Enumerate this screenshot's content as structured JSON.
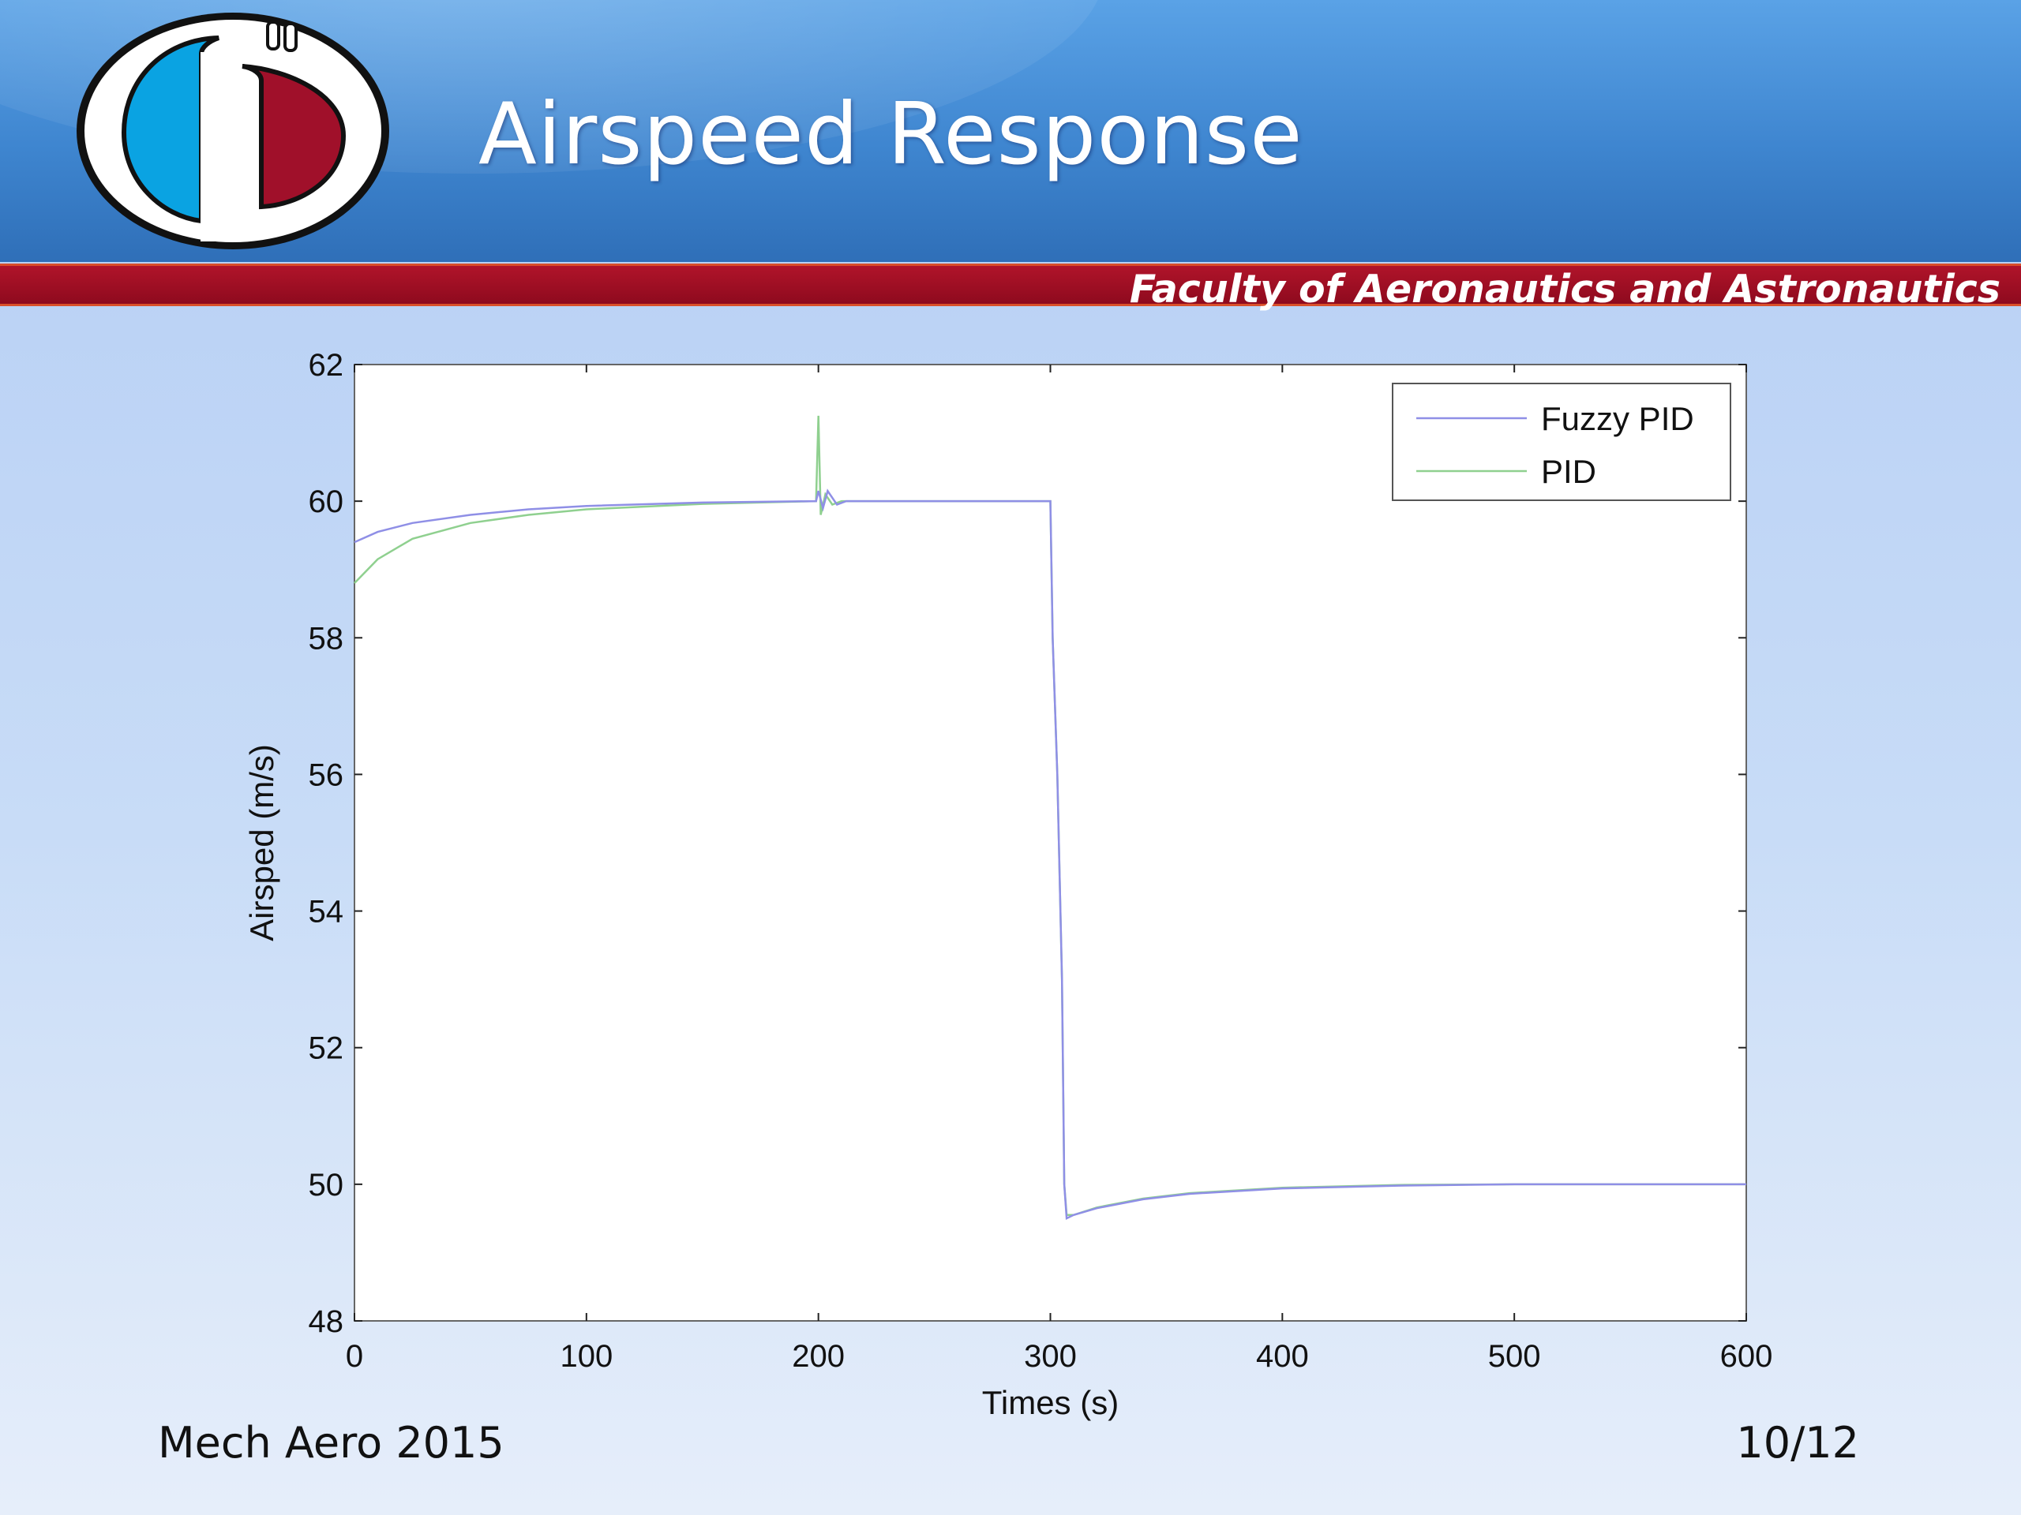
{
  "slide": {
    "title": "Airspeed Response",
    "faculty_banner": "Faculty of Aeronautics and Astronautics",
    "footer_left": "Mech Aero 2015",
    "page_number": "10/12",
    "colors": {
      "header_blue": "#3f86d0",
      "banner_red": "#a0102a",
      "logo_blue": "#0aa3e2",
      "logo_red": "#a0102a"
    }
  },
  "chart_data": {
    "type": "line",
    "xlabel": "Times (s)",
    "ylabel": "Airsped (m/s)",
    "xlim": [
      0,
      600
    ],
    "ylim": [
      48,
      62
    ],
    "xticks": [
      0,
      100,
      200,
      300,
      400,
      500,
      600
    ],
    "yticks": [
      48,
      50,
      52,
      54,
      56,
      58,
      60,
      62
    ],
    "grid": false,
    "legend_position": "top-right",
    "series": [
      {
        "name": "Fuzzy PID",
        "color": "#8f8fe6",
        "points": [
          [
            0,
            59.4
          ],
          [
            10,
            59.55
          ],
          [
            25,
            59.68
          ],
          [
            50,
            59.8
          ],
          [
            75,
            59.88
          ],
          [
            100,
            59.93
          ],
          [
            150,
            59.98
          ],
          [
            199,
            60.0
          ],
          [
            200,
            60.15
          ],
          [
            202,
            59.9
          ],
          [
            204,
            60.15
          ],
          [
            208,
            59.95
          ],
          [
            212,
            60.0
          ],
          [
            300,
            60.0
          ],
          [
            301,
            58.0
          ],
          [
            303,
            56.0
          ],
          [
            305,
            53.0
          ],
          [
            306,
            50.0
          ],
          [
            307,
            49.5
          ],
          [
            310,
            49.55
          ],
          [
            320,
            49.65
          ],
          [
            340,
            49.78
          ],
          [
            360,
            49.86
          ],
          [
            400,
            49.94
          ],
          [
            450,
            49.98
          ],
          [
            500,
            50.0
          ],
          [
            600,
            50.0
          ]
        ]
      },
      {
        "name": "PID",
        "color": "#8fd08f",
        "points": [
          [
            0,
            58.8
          ],
          [
            10,
            59.15
          ],
          [
            25,
            59.45
          ],
          [
            50,
            59.68
          ],
          [
            75,
            59.8
          ],
          [
            100,
            59.88
          ],
          [
            150,
            59.96
          ],
          [
            199,
            60.0
          ],
          [
            200,
            61.25
          ],
          [
            201,
            59.8
          ],
          [
            203,
            60.1
          ],
          [
            206,
            59.95
          ],
          [
            210,
            60.0
          ],
          [
            300,
            60.0
          ],
          [
            301,
            58.0
          ],
          [
            303,
            56.0
          ],
          [
            305,
            53.0
          ],
          [
            306,
            50.0
          ],
          [
            307,
            49.55
          ],
          [
            310,
            49.55
          ],
          [
            320,
            49.66
          ],
          [
            340,
            49.79
          ],
          [
            360,
            49.87
          ],
          [
            400,
            49.95
          ],
          [
            450,
            49.99
          ],
          [
            500,
            50.0
          ],
          [
            600,
            50.0
          ]
        ]
      }
    ]
  }
}
